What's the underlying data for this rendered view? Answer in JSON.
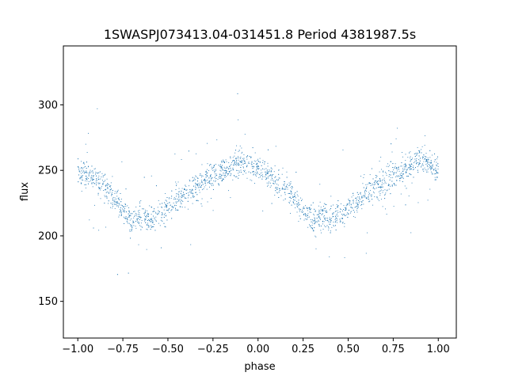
{
  "chart_data": {
    "type": "scatter",
    "title": "1SWASPJ073413.04-031451.8 Period 4381987.5s",
    "xlabel": "phase",
    "ylabel": "flux",
    "xlim": [
      -1.08,
      1.1
    ],
    "ylim": [
      122,
      345
    ],
    "xticks": [
      -1.0,
      -0.75,
      -0.5,
      -0.25,
      0.0,
      0.25,
      0.5,
      0.75,
      1.0
    ],
    "xtick_labels": [
      "−1.00",
      "−0.75",
      "−0.50",
      "−0.25",
      "0.00",
      "0.25",
      "0.50",
      "0.75",
      "1.00"
    ],
    "yticks": [
      150,
      200,
      250,
      300
    ],
    "ytick_labels": [
      "150",
      "200",
      "250",
      "300"
    ],
    "grid": false,
    "legend": "none",
    "marker_color": "#1f77b4",
    "series": [
      {
        "trend_phase": [
          -1.0,
          -0.9,
          -0.8,
          -0.75,
          -0.7,
          -0.65,
          -0.58,
          -0.5,
          -0.4,
          -0.3,
          -0.2,
          -0.1,
          -0.05,
          0.0,
          0.1,
          0.2,
          0.25,
          0.3,
          0.35,
          0.42,
          0.5,
          0.6,
          0.7,
          0.8,
          0.9,
          0.95,
          1.0
        ],
        "trend_flux": [
          250,
          243,
          230,
          220,
          212,
          215,
          213,
          222,
          232,
          242,
          250,
          258,
          255,
          250,
          243,
          230,
          220,
          212,
          215,
          213,
          222,
          232,
          242,
          250,
          258,
          255,
          250
        ]
      }
    ]
  }
}
